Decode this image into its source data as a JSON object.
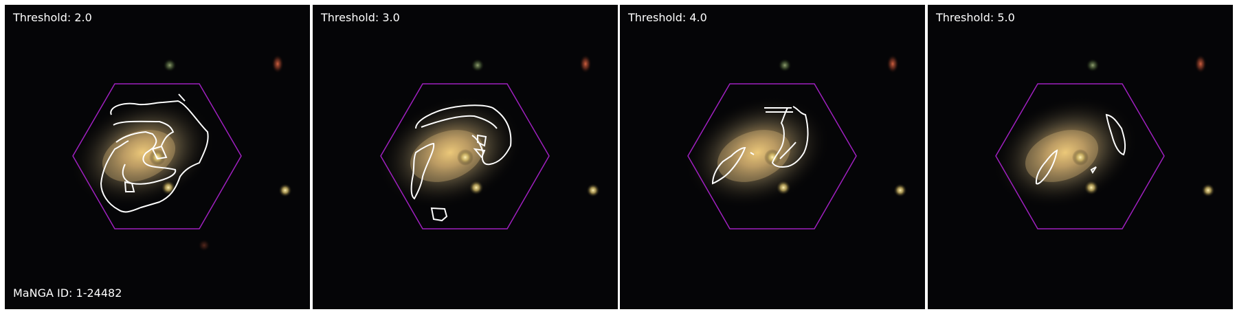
{
  "figure": {
    "id_label": "MaNGA ID: 1-24482",
    "panels": [
      {
        "label": "Threshold: 2.0"
      },
      {
        "label": "Threshold: 3.0"
      },
      {
        "label": "Threshold: 4.0"
      },
      {
        "label": "Threshold: 5.0"
      }
    ]
  },
  "colors": {
    "hexagon": "#a020c0",
    "contour": "#ffffff",
    "label_text": "#ffffff",
    "background": "#000000"
  }
}
